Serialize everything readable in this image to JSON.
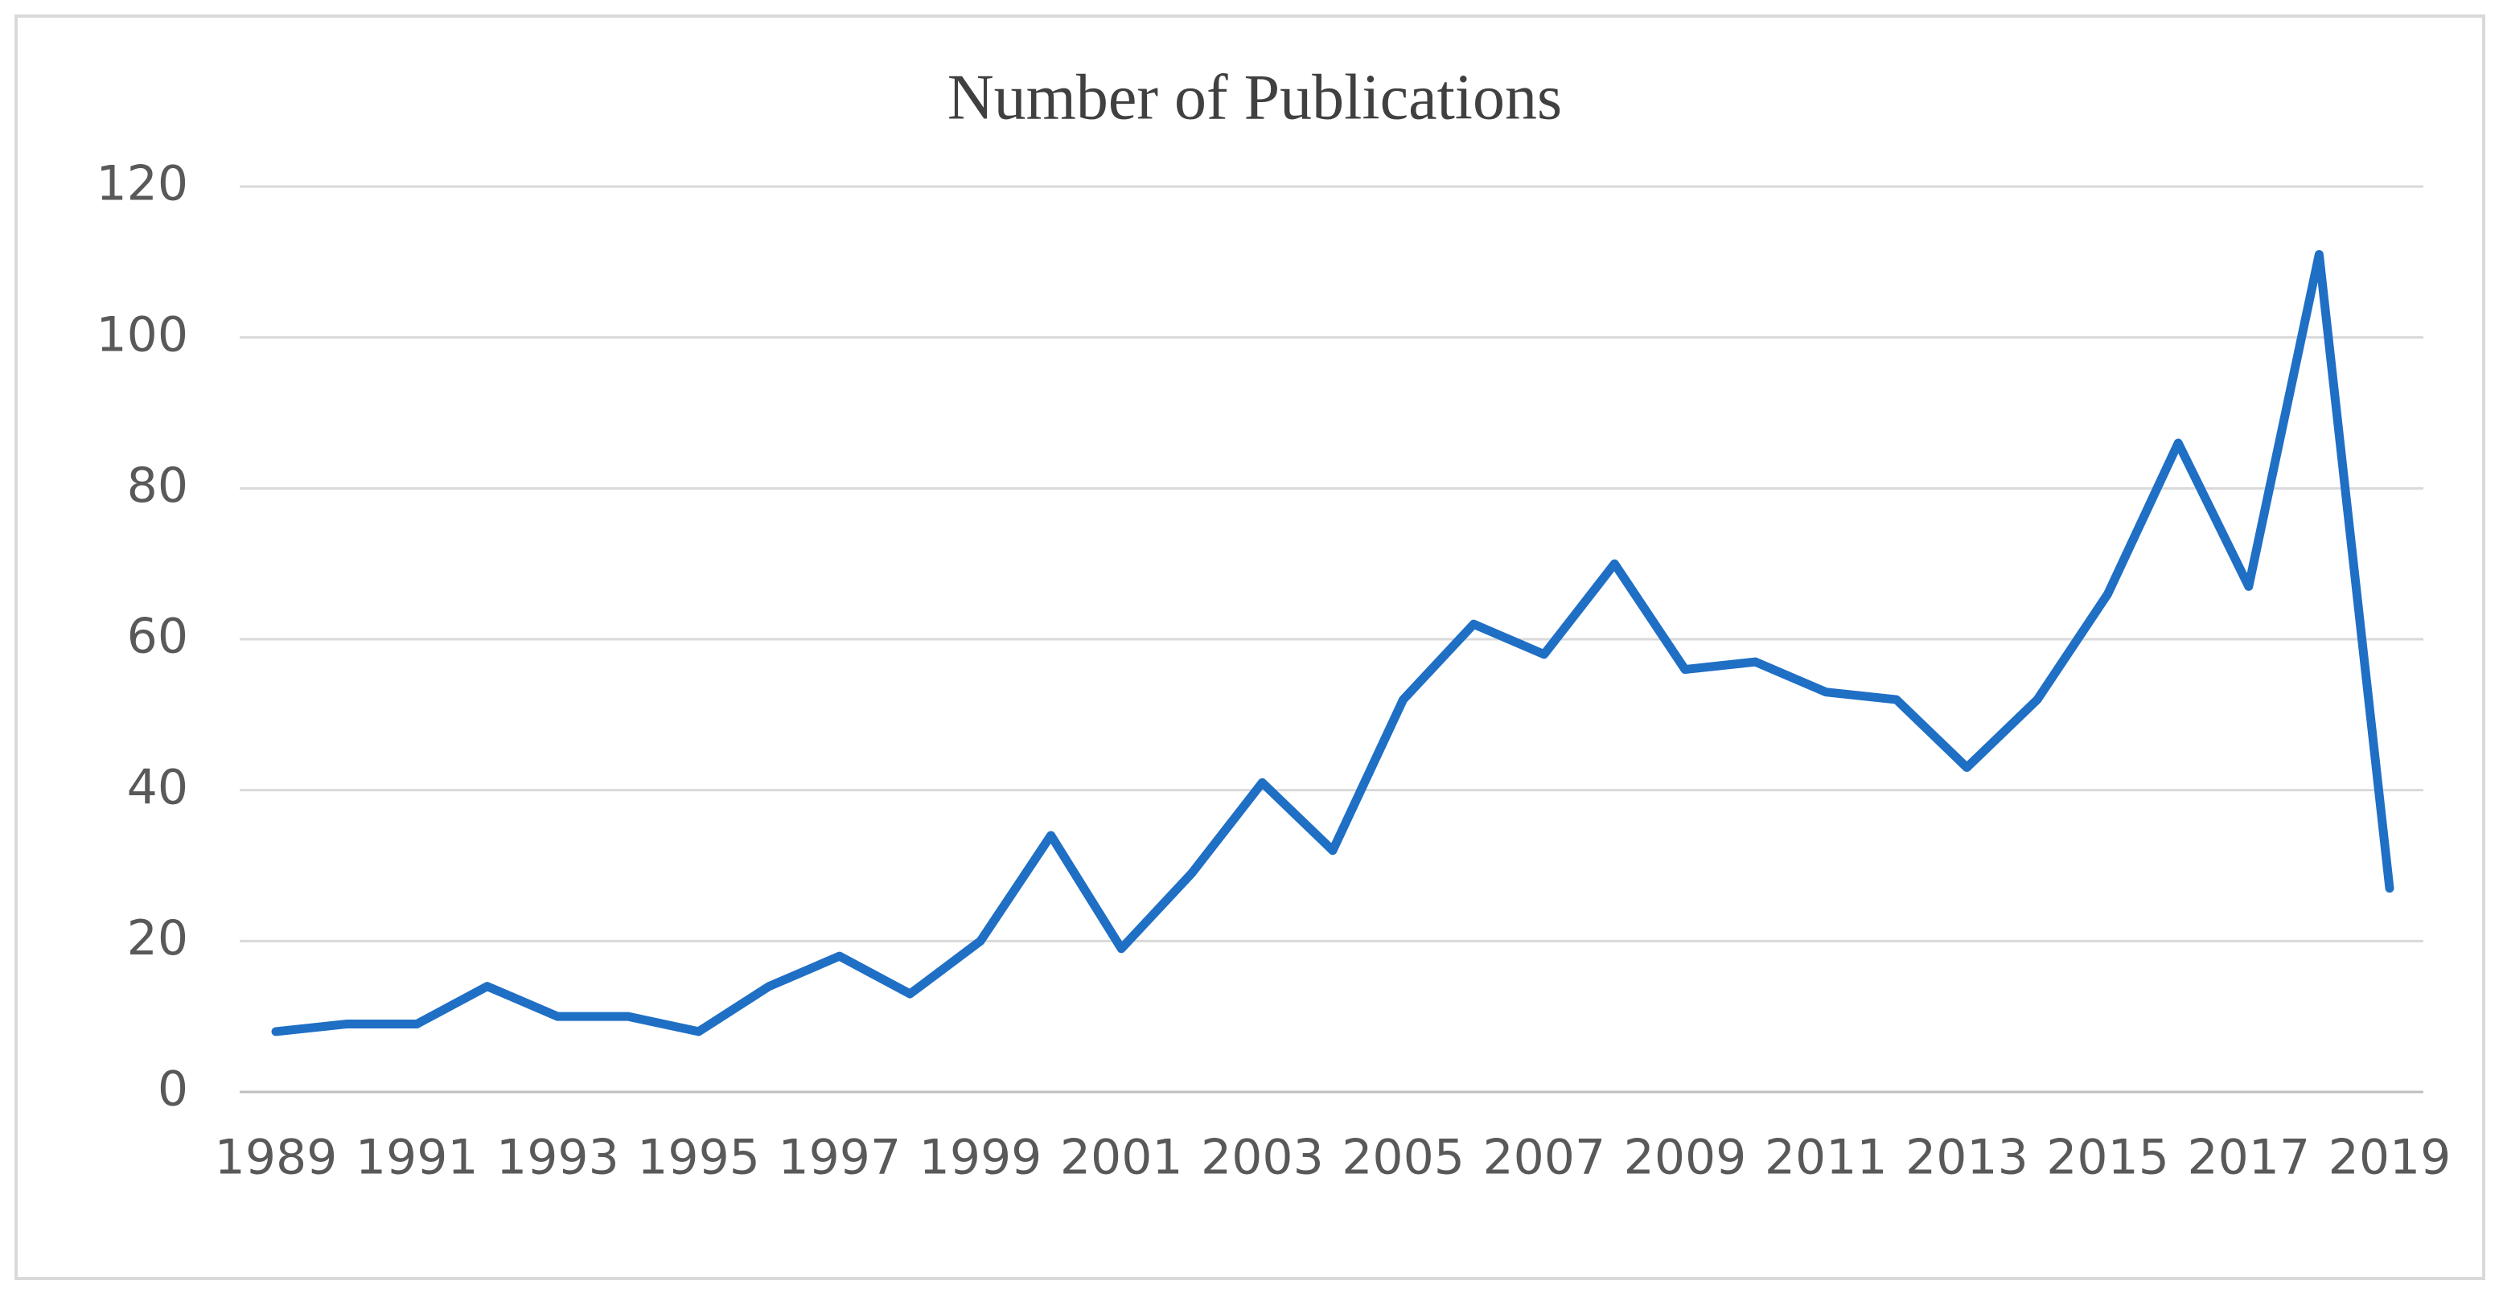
{
  "chart_data": {
    "type": "line",
    "title": "Number of Publications",
    "x": [
      1989,
      1990,
      1991,
      1992,
      1993,
      1994,
      1995,
      1996,
      1997,
      1998,
      1999,
      2000,
      2001,
      2002,
      2003,
      2004,
      2005,
      2006,
      2007,
      2008,
      2009,
      2010,
      2011,
      2012,
      2013,
      2014,
      2015,
      2016,
      2017,
      2018,
      2019
    ],
    "values": [
      8,
      9,
      9,
      14,
      10,
      10,
      8,
      14,
      18,
      13,
      20,
      34,
      19,
      29,
      41,
      32,
      52,
      62,
      58,
      70,
      56,
      57,
      53,
      52,
      43,
      52,
      66,
      86,
      67,
      111,
      27
    ],
    "color": "#1f6fc5",
    "xlim": [
      1989,
      2019
    ],
    "xticks": [
      1989,
      1991,
      1993,
      1995,
      1997,
      1999,
      2001,
      2003,
      2005,
      2007,
      2009,
      2011,
      2013,
      2015,
      2017,
      2019
    ],
    "ylim": [
      0,
      120
    ],
    "yticks": [
      0,
      20,
      40,
      60,
      80,
      100,
      120
    ],
    "grid": true
  }
}
